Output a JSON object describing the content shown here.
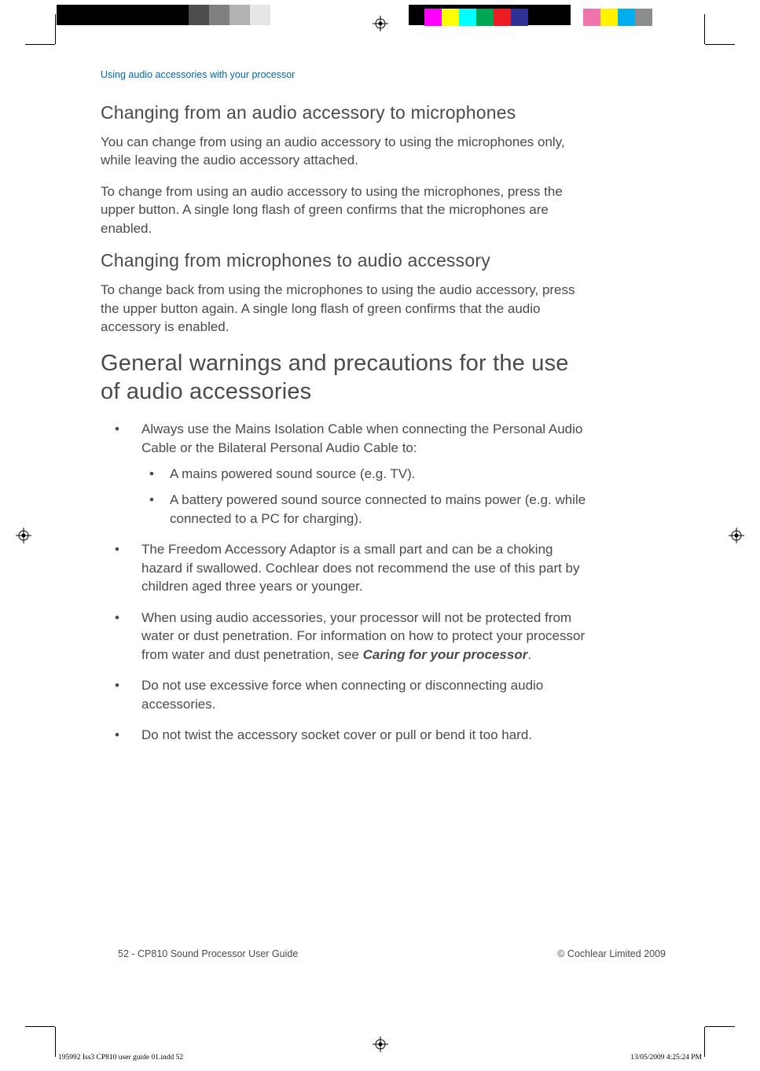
{
  "print": {
    "gray_steps": [
      "#4d4d4d",
      "#808080",
      "#b3b3b3",
      "#e6e6e6",
      "#ffffff"
    ],
    "color_steps_1": [
      "#ff00ff",
      "#ffff00",
      "#00ffff",
      "#00a651",
      "#ed1c24",
      "#2e3192"
    ],
    "color_steps_2": [
      "#f173ac",
      "#fff200",
      "#00aeef",
      "#8a8c8e"
    ]
  },
  "header": {
    "running_head": "Using audio accessories with your processor"
  },
  "sections": {
    "h3a": "Changing from an audio accessory to microphones",
    "p1": "You can change from using an audio accessory to using the microphones only, while leaving the audio accessory attached.",
    "p2": "To change from using an audio accessory to using the microphones, press the upper button. A single long flash of green confirms that the microphones are enabled.",
    "h3b": "Changing from microphones to audio accessory",
    "p3": "To change back from using the microphones to using the audio accessory, press the upper button again. A single long flash of green confirms that the audio accessory is enabled.",
    "h2": "General warnings and precautions for the use of audio accessories",
    "bullets": {
      "b1": "Always use the Mains Isolation Cable when connecting the Personal Audio Cable or the Bilateral Personal Audio Cable to:",
      "b1_sub1": "A mains powered sound source  (e.g. TV).",
      "b1_sub2": "A battery powered sound source connected to mains power (e.g. while connected to a PC for charging).",
      "b2": "The Freedom Accessory Adaptor is a small part and can be a choking hazard if swallowed. Cochlear does not recommend the use of this part by children aged three years or younger.",
      "b3_pre": "When using audio accessories, your processor will not be protected from water or dust penetration. For information on how to protect your processor from water and dust penetration, see ",
      "b3_em": "Caring for your processor",
      "b3_post": ".",
      "b4": "Do not use excessive force when connecting or disconnecting audio accessories.",
      "b5": "Do not twist the accessory socket cover or pull or bend it too hard."
    }
  },
  "footer": {
    "left": "52 - CP810 Sound Processor User Guide",
    "right": "© Cochlear Limited 2009"
  },
  "slug": {
    "left": "195992 Iss3 CP810 user guide 01.indd   52",
    "right": "13/05/2009   4:25:24 PM"
  },
  "colors": {
    "accent": "#0066b3",
    "body": "#4a4a4a"
  }
}
